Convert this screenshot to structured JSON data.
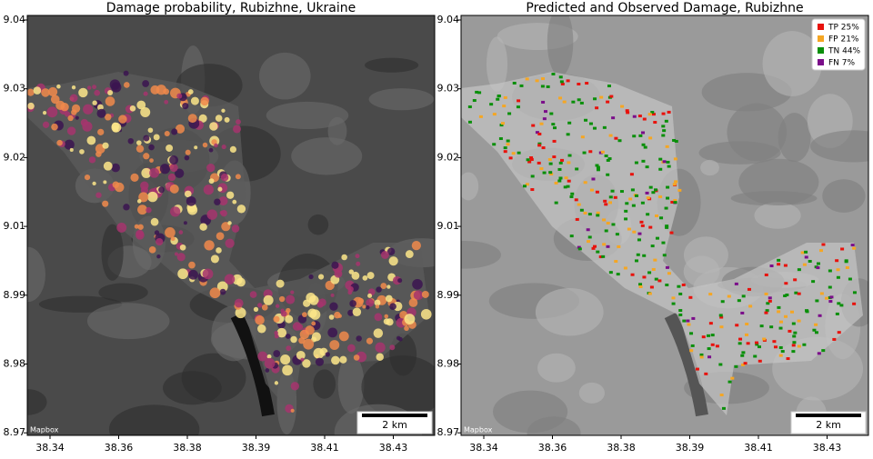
{
  "panels": [
    {
      "title": "Damage probability, Rubizhne, Ukraine",
      "attribution": "Mapbox",
      "scale_label": "2 km",
      "xticks": [
        38.34,
        38.36,
        38.38,
        38.39,
        38.41,
        38.43
      ],
      "yticks": [
        9.04,
        9.03,
        9.02,
        9.01,
        8.99,
        8.98,
        8.97
      ]
    },
    {
      "title": "Predicted and Observed Damage, Rubizhne",
      "attribution": "Mapbox",
      "scale_label": "2 km",
      "xticks": [
        38.34,
        38.36,
        38.38,
        38.39,
        38.41,
        38.43
      ],
      "yticks": [
        9.04,
        9.03,
        9.02,
        9.01,
        8.99,
        8.98,
        8.97
      ],
      "legend": [
        {
          "label": "TP 25%",
          "color": "#e8120c"
        },
        {
          "label": "FP 21%",
          "color": "#f5a623"
        },
        {
          "label": "TN 44%",
          "color": "#0a8f0a"
        },
        {
          "label": "FN 7%",
          "color": "#7b0d8a"
        }
      ]
    }
  ]
}
